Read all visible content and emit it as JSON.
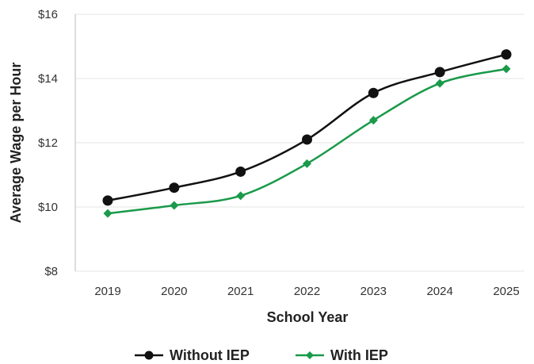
{
  "chart_data": {
    "type": "line",
    "title": "",
    "xlabel": "School Year",
    "ylabel": "Average Wage per Hour",
    "categories": [
      "2019",
      "2020",
      "2021",
      "2022",
      "2023",
      "2024",
      "2025"
    ],
    "ylim": [
      8,
      16
    ],
    "yticks": [
      8,
      10,
      12,
      14,
      16
    ],
    "ytick_labels": [
      "$8",
      "$10",
      "$12",
      "$14",
      "$16"
    ],
    "grid": true,
    "legend_position": "bottom-center",
    "series": [
      {
        "name": "Without IEP",
        "color": "#111111",
        "marker": "circle",
        "values": [
          10.2,
          10.6,
          11.1,
          12.1,
          13.55,
          14.2,
          14.75
        ]
      },
      {
        "name": "With IEP",
        "color": "#1a9a4a",
        "marker": "diamond",
        "values": [
          9.8,
          10.05,
          10.35,
          11.35,
          12.7,
          13.85,
          14.3
        ]
      }
    ]
  }
}
